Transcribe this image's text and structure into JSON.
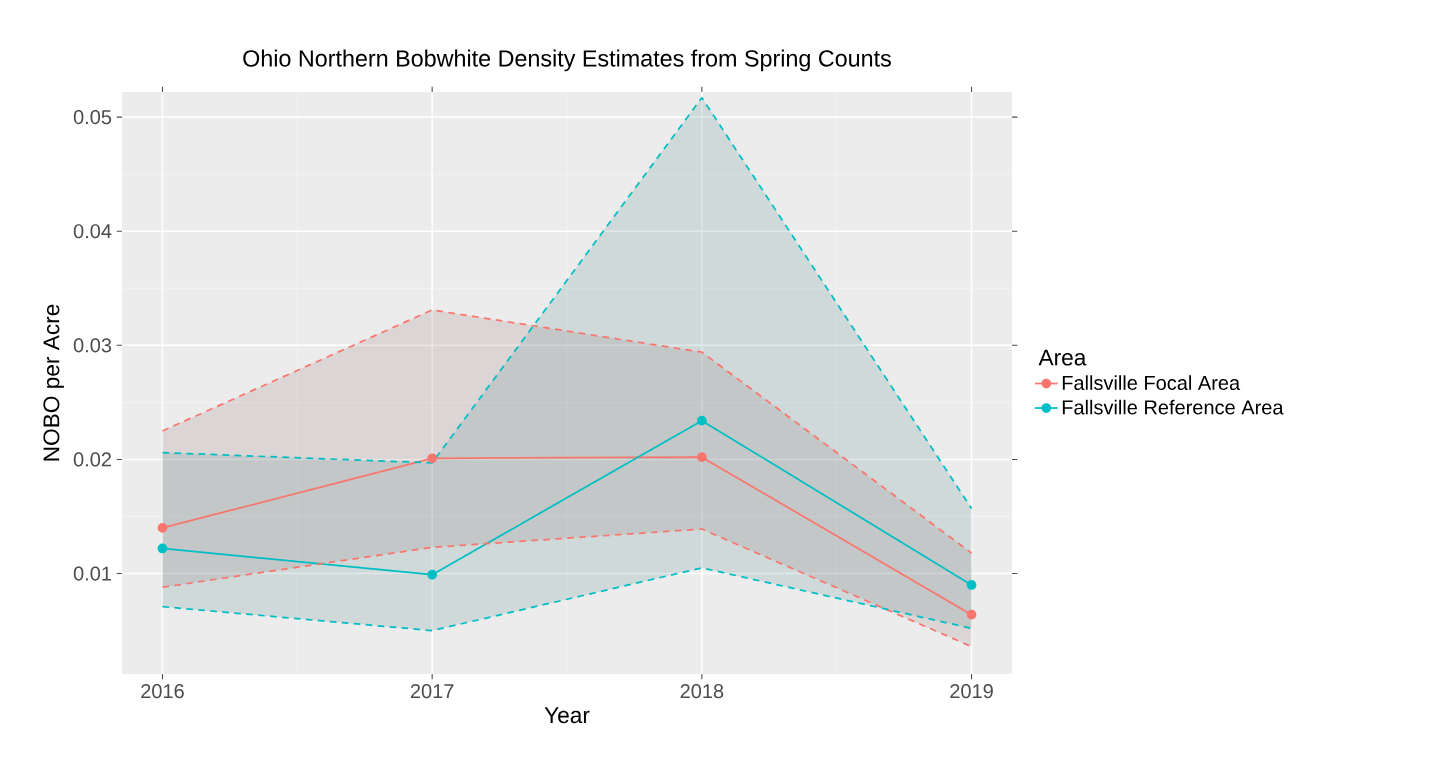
{
  "chart_data": {
    "type": "line",
    "title": "Ohio Northern Bobwhite Density Estimates from Spring Counts",
    "xlabel": "Year",
    "ylabel": "NOBO per Acre",
    "legend_title": "Area",
    "x": [
      2016,
      2017,
      2018,
      2019
    ],
    "series": [
      {
        "name": "Fallsville Focal Area",
        "color": "#f8766d",
        "values": [
          0.014,
          0.0201,
          0.0202,
          0.0064
        ],
        "lower": [
          0.0088,
          0.0123,
          0.0139,
          0.0036
        ],
        "upper": [
          0.0225,
          0.0331,
          0.0294,
          0.0118
        ]
      },
      {
        "name": "Fallsville Reference Area",
        "color": "#00bfc4",
        "values": [
          0.0122,
          0.0099,
          0.0234,
          0.009
        ],
        "lower": [
          0.0071,
          0.005,
          0.0105,
          0.0052
        ],
        "upper": [
          0.0206,
          0.0197,
          0.0517,
          0.0157
        ]
      },
      {
        "color": "#f8766d",
        "values": [
          0.0225,
          0.0331,
          0.0294,
          0.0118
        ],
        "line_style": "dashed",
        "marker": "none"
      },
      {
        "color": "#f8766d",
        "values": [
          0.0088,
          0.0123,
          0.0139,
          0.0036
        ],
        "line_style": "dashed",
        "marker": "none"
      },
      {
        "color": "#00bfc4",
        "values": [
          0.0206,
          0.0197,
          0.0517,
          0.0157
        ],
        "line_style": "dashed",
        "marker": "none"
      },
      {
        "color": "#00bfc4",
        "values": [
          0.0071,
          0.005,
          0.0105,
          0.0052
        ],
        "line_style": "dashed",
        "marker": "none"
      }
    ],
    "xlim": [
      2015.85,
      2019.15
    ],
    "ylim": [
      0.0012,
      0.0522
    ],
    "xticks": [
      2016,
      2017,
      2018,
      2019
    ],
    "yticks": [
      0.01,
      0.02,
      0.03,
      0.04,
      0.05
    ],
    "grid": true,
    "legend": "right",
    "marker": "circle",
    "line_style": "solid"
  }
}
